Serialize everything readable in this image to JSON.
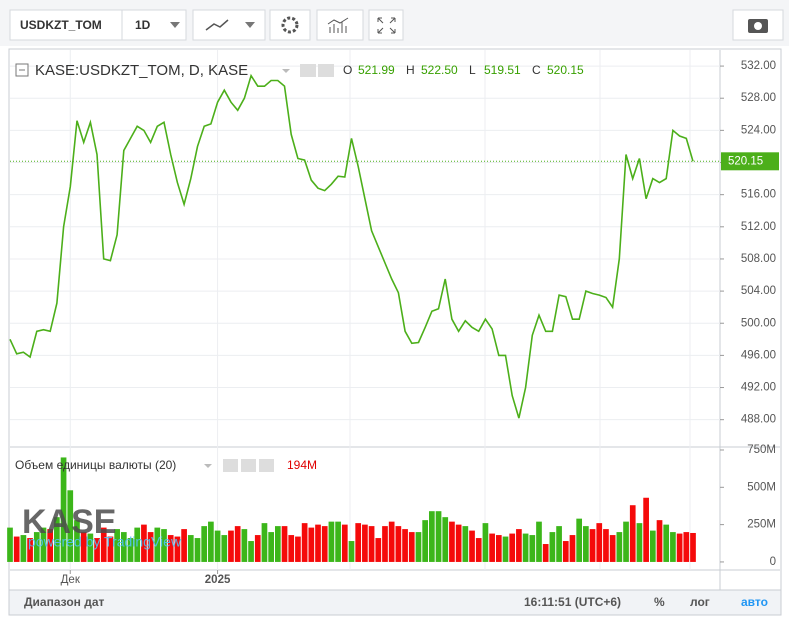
{
  "toolbar": {
    "symbol": "USDKZT_TOM",
    "interval": "1D"
  },
  "legend": {
    "title": "KASE:USDKZT_TOM, D, KASE",
    "ohlc": [
      {
        "key": "O",
        "value": "521.99"
      },
      {
        "key": "H",
        "value": "522.50"
      },
      {
        "key": "L",
        "value": "519.51"
      },
      {
        "key": "C",
        "value": "520.15"
      }
    ]
  },
  "watermark": {
    "logo": "KASE",
    "powered": "powered by TradingView"
  },
  "footer": {
    "range": "Диапазон дат",
    "time": "16:11:51 (UTC+6)",
    "percent": "%",
    "log": "лог",
    "auto": "авто"
  },
  "chart_data": [
    {
      "type": "line",
      "color": "#4caf1a",
      "ylim": [
        484.6,
        534
      ],
      "yticks": [
        {
          "value": 488,
          "label": "488.00"
        },
        {
          "value": 492,
          "label": "492.00"
        },
        {
          "value": 496,
          "label": "496.00"
        },
        {
          "value": 500,
          "label": "500.00"
        },
        {
          "value": 504,
          "label": "504.00"
        },
        {
          "value": 508,
          "label": "508.00"
        },
        {
          "value": 512,
          "label": "512.00"
        },
        {
          "value": 516,
          "label": "516.00"
        },
        {
          "value": 520,
          "label": "520.00"
        },
        {
          "value": 524,
          "label": "524.00"
        },
        {
          "value": 528,
          "label": "528.00"
        },
        {
          "value": 532,
          "label": "532.00"
        }
      ],
      "grid": true,
      "categories": [
        null,
        null,
        null,
        null,
        null,
        null,
        null,
        null,
        null,
        "Дек",
        null,
        null,
        null,
        null,
        null,
        null,
        null,
        null,
        null,
        null,
        null,
        null,
        null,
        null,
        null,
        null,
        null,
        null,
        null,
        null,
        null,
        "2025",
        null,
        null,
        null,
        null,
        null,
        null,
        null,
        null,
        null,
        null,
        null,
        null,
        null,
        null,
        null,
        null,
        null,
        null,
        null,
        null,
        null,
        null,
        null,
        null,
        null,
        null,
        null,
        null,
        null,
        null,
        null,
        null,
        null,
        null,
        null,
        null,
        null,
        null,
        null,
        null,
        null,
        null,
        null,
        null,
        null,
        null,
        null,
        null,
        null,
        null,
        null,
        null,
        null,
        null,
        null,
        null,
        null,
        null,
        null,
        null,
        null,
        null,
        null,
        null,
        null,
        null,
        null,
        null,
        null,
        null,
        null
      ],
      "values": [
        498,
        496.2,
        496.4,
        495.8,
        499,
        499.2,
        499,
        502.5,
        512,
        517,
        525.2,
        522.5,
        525,
        521,
        508,
        507.8,
        511,
        521.5,
        523,
        524.5,
        524,
        522.5,
        524.5,
        525,
        521,
        517.5,
        514.8,
        518,
        522,
        524.5,
        524.8,
        527.5,
        529,
        527.5,
        526.5,
        528,
        530.8,
        529.5,
        529.5,
        530.2,
        530.2,
        529.5,
        523.5,
        520.5,
        520.3,
        517.8,
        516.8,
        516.5,
        517.3,
        518.3,
        518.2,
        523,
        519.5,
        515.5,
        511.5,
        509.5,
        507.5,
        505.5,
        503.8,
        499,
        497.5,
        497.6,
        499.5,
        501.5,
        501.8,
        505.5,
        500.5,
        499,
        500.3,
        499.5,
        499,
        500.5,
        499.3,
        496,
        496,
        491,
        488.2,
        492,
        498.5,
        501,
        499,
        499,
        503.5,
        503.3,
        500.5,
        500.5,
        504,
        503.7,
        503.5,
        503.2,
        502,
        508,
        521,
        518,
        520.5,
        515.5,
        518,
        517.5,
        518,
        524,
        523.3,
        523,
        520.15
      ]
    },
    {
      "type": "bar",
      "title": "Объем единицы валюты (20)",
      "last_label": "194M",
      "up_color": "#3cb61a",
      "down_color": "#f50a0a",
      "ylim": [
        -54,
        770
      ],
      "yticks": [
        0,
        {
          "value": 250,
          "label": "250M"
        },
        {
          "value": 500,
          "label": "500M"
        },
        {
          "value": 750,
          "label": "750M"
        }
      ],
      "values": [
        230,
        170,
        180,
        160,
        200,
        230,
        220,
        300,
        700,
        480,
        280,
        200,
        190,
        160,
        230,
        170,
        220,
        200,
        160,
        230,
        250,
        200,
        230,
        220,
        180,
        170,
        220,
        180,
        160,
        240,
        270,
        210,
        180,
        210,
        240,
        220,
        140,
        180,
        260,
        200,
        240,
        240,
        180,
        170,
        260,
        230,
        250,
        240,
        270,
        270,
        250,
        140,
        260,
        250,
        240,
        160,
        240,
        270,
        240,
        220,
        200,
        200,
        280,
        340,
        340,
        300,
        270,
        250,
        240,
        210,
        160,
        260,
        190,
        180,
        170,
        190,
        220,
        190,
        180,
        270,
        120,
        200,
        240,
        140,
        180,
        290,
        240,
        220,
        260,
        220,
        180,
        200,
        270,
        380,
        260,
        430,
        210,
        280,
        250,
        200,
        190,
        200,
        194
      ]
    }
  ]
}
